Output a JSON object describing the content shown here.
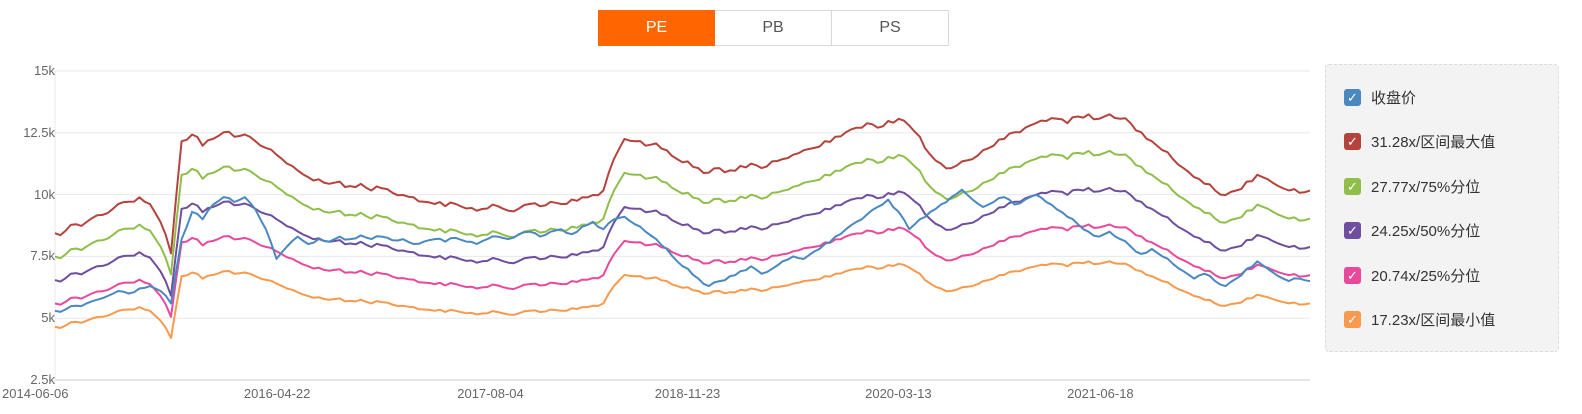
{
  "tabs": {
    "items": [
      {
        "label": "PE",
        "active": true
      },
      {
        "label": "PB",
        "active": false
      },
      {
        "label": "PS",
        "active": false
      }
    ]
  },
  "colors": {
    "accent": "#ff6600",
    "close": "#4a89c0",
    "max_band": "#b5433d",
    "p75_band": "#8fbe4a",
    "p50_band": "#6f4d9f",
    "p25_band": "#e8499b",
    "min_band": "#f79a4d",
    "grid": "#e8e8e8",
    "axis_line": "#cccccc",
    "axis_text": "#666666",
    "legend_bg": "#f3f3f3"
  },
  "legend": {
    "items": [
      {
        "key": "close",
        "label": "收盘价",
        "color": "#4a89c0"
      },
      {
        "key": "max",
        "label": "31.28x/区间最大值",
        "color": "#b5433d"
      },
      {
        "key": "p75",
        "label": "27.77x/75%分位",
        "color": "#8fbe4a"
      },
      {
        "key": "p50",
        "label": "24.25x/50%分位",
        "color": "#6f4d9f"
      },
      {
        "key": "p25",
        "label": "20.74x/25%分位",
        "color": "#e8499b"
      },
      {
        "key": "min",
        "label": "17.23x/区间最小值",
        "color": "#f79a4d"
      }
    ]
  },
  "chart_data": {
    "type": "line",
    "title": "",
    "xlabel": "",
    "ylabel": "",
    "legend_position": "right",
    "grid": true,
    "y_axis": {
      "min": 2.5,
      "max": 15,
      "unit": "k",
      "tick_labels": [
        "15k",
        "12.5k",
        "10k",
        "7.5k",
        "5k",
        "2.5k"
      ],
      "tick_values": [
        15,
        12.5,
        10,
        7.5,
        5,
        2.5
      ]
    },
    "x_axis": {
      "tick_labels": [
        "2014-06-06",
        "2016-04-22",
        "2017-08-04",
        "2018-11-23",
        "2020-03-13",
        "2021-06-18"
      ],
      "tick_pos": [
        0,
        0.177,
        0.347,
        0.504,
        0.672,
        0.833
      ]
    },
    "band_base_values": [
      4.65,
      4.7,
      4.85,
      4.9,
      5.05,
      5.1,
      5.3,
      5.35,
      5.45,
      5.3,
      4.9,
      4.2,
      6.7,
      6.85,
      6.6,
      6.75,
      6.9,
      6.8,
      6.85,
      6.7,
      6.55,
      6.4,
      6.2,
      6.05,
      5.9,
      5.85,
      5.75,
      5.8,
      5.7,
      5.75,
      5.6,
      5.65,
      5.55,
      5.5,
      5.45,
      5.35,
      5.3,
      5.25,
      5.3,
      5.2,
      5.15,
      5.2,
      5.25,
      5.15,
      5.2,
      5.3,
      5.25,
      5.35,
      5.3,
      5.4,
      5.45,
      5.5,
      5.6,
      6.3,
      6.75,
      6.7,
      6.6,
      6.65,
      6.5,
      6.3,
      6.25,
      6.1,
      6.0,
      6.1,
      6.05,
      6.15,
      6.2,
      6.1,
      6.25,
      6.3,
      6.4,
      6.5,
      6.55,
      6.7,
      6.8,
      6.9,
      7.0,
      7.1,
      7.0,
      7.15,
      7.2,
      7.05,
      6.8,
      6.4,
      6.2,
      6.1,
      6.25,
      6.3,
      6.5,
      6.6,
      6.75,
      6.9,
      7.0,
      7.1,
      7.15,
      7.2,
      7.1,
      7.25,
      7.3,
      7.2,
      7.3,
      7.2,
      7.1,
      6.9,
      6.7,
      6.5,
      6.3,
      6.1,
      5.9,
      5.75,
      5.6,
      5.5,
      5.6,
      5.8,
      5.95,
      5.85,
      5.7,
      5.6,
      5.55,
      5.6
    ],
    "series": [
      {
        "key": "max",
        "name": "31.28x/区间最大值",
        "color": "#b5433d",
        "type": "band",
        "multiplier": 1.815
      },
      {
        "key": "p75",
        "name": "27.77x/75%分位",
        "color": "#8fbe4a",
        "type": "band",
        "multiplier": 1.612
      },
      {
        "key": "p50",
        "name": "24.25x/50%分位",
        "color": "#6f4d9f",
        "type": "band",
        "multiplier": 1.407
      },
      {
        "key": "p25",
        "name": "20.74x/25%分位",
        "color": "#e8499b",
        "type": "band",
        "multiplier": 1.204
      },
      {
        "key": "min",
        "name": "17.23x/区间最小值",
        "color": "#f79a4d",
        "type": "band",
        "multiplier": 1.0
      },
      {
        "key": "close",
        "name": "收盘价",
        "color": "#4a89c0",
        "type": "values",
        "values": [
          5.3,
          5.35,
          5.5,
          5.6,
          5.75,
          5.9,
          6.1,
          6.0,
          6.2,
          6.3,
          6.1,
          5.6,
          8.2,
          9.3,
          9.0,
          9.6,
          9.9,
          9.7,
          9.9,
          9.4,
          8.6,
          7.4,
          7.9,
          8.3,
          8.0,
          8.2,
          8.1,
          8.3,
          8.2,
          8.35,
          8.2,
          8.3,
          8.15,
          8.2,
          8.0,
          8.1,
          8.2,
          8.1,
          8.25,
          8.1,
          8.0,
          8.2,
          8.3,
          8.2,
          8.4,
          8.5,
          8.3,
          8.5,
          8.6,
          8.4,
          8.7,
          8.9,
          8.6,
          9.0,
          9.1,
          8.8,
          8.5,
          8.2,
          7.8,
          7.3,
          7.0,
          6.6,
          6.3,
          6.5,
          6.7,
          6.9,
          7.1,
          6.8,
          7.0,
          7.3,
          7.5,
          7.4,
          7.7,
          8.0,
          8.3,
          8.6,
          8.9,
          9.2,
          9.5,
          9.8,
          9.3,
          8.6,
          9.0,
          9.3,
          9.6,
          9.9,
          10.2,
          9.8,
          9.5,
          9.7,
          9.9,
          9.6,
          9.8,
          10.0,
          9.7,
          9.4,
          9.1,
          8.8,
          8.5,
          8.3,
          8.5,
          8.2,
          7.9,
          7.6,
          7.8,
          7.5,
          7.2,
          6.9,
          6.6,
          6.8,
          6.5,
          6.3,
          6.6,
          7.0,
          7.3,
          7.0,
          6.7,
          6.5,
          6.6,
          6.5
        ]
      }
    ]
  }
}
